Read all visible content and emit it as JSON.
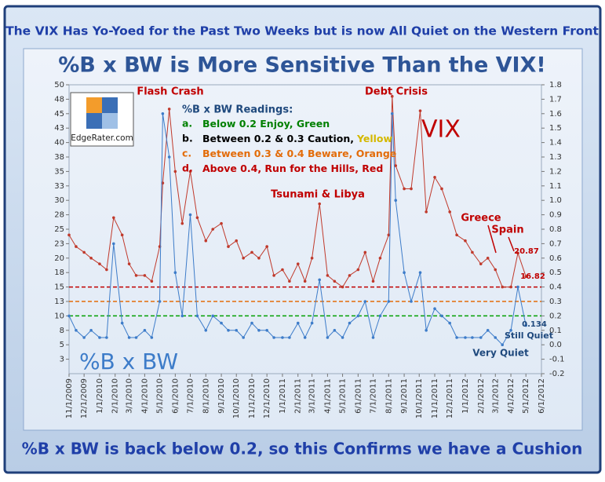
{
  "header": "The VIX Has Yo-Yoed for the Past Two Weeks but is now All Quiet on the Western Front",
  "footer": "%B x BW is back below 0.2, so this Confirms we have a Cushion",
  "logo": "EdgeRater.com",
  "chart_data": {
    "type": "line",
    "title": "%B x BW is More Sensitive Than the VIX!",
    "x": [
      "11/1/2009",
      "11/15/2009",
      "12/1/2009",
      "12/15/2009",
      "1/1/2010",
      "1/15/2010",
      "1/29/2010",
      "2/15/2010",
      "3/1/2010",
      "3/15/2010",
      "4/1/2010",
      "4/15/2010",
      "5/1/2010",
      "5/7/2010",
      "5/20/2010",
      "6/1/2010",
      "6/15/2010",
      "7/1/2010",
      "7/15/2010",
      "8/1/2010",
      "8/15/2010",
      "9/1/2010",
      "9/15/2010",
      "10/1/2010",
      "10/15/2010",
      "11/1/2010",
      "11/15/2010",
      "12/1/2010",
      "12/15/2010",
      "1/1/2011",
      "1/15/2011",
      "2/1/2011",
      "2/15/2011",
      "3/1/2011",
      "3/16/2011",
      "4/1/2011",
      "4/15/2011",
      "5/1/2011",
      "5/15/2011",
      "6/1/2011",
      "6/15/2011",
      "7/1/2011",
      "7/15/2011",
      "8/1/2011",
      "8/8/2011",
      "8/15/2011",
      "9/1/2011",
      "9/15/2011",
      "10/3/2011",
      "10/15/2011",
      "11/1/2011",
      "11/15/2011",
      "12/1/2011",
      "12/15/2011",
      "1/1/2012",
      "1/15/2012",
      "2/1/2012",
      "2/15/2012",
      "3/1/2012",
      "3/15/2012",
      "4/1/2012",
      "4/15/2012",
      "5/1/2012"
    ],
    "series": [
      {
        "name": "VIX",
        "color": "#c0392b",
        "axis": "y",
        "values": [
          24,
          22,
          21,
          20,
          19,
          18,
          27,
          24,
          19,
          17,
          17,
          16,
          22,
          33,
          45.8,
          35,
          26,
          35,
          27,
          23,
          25,
          26,
          22,
          23,
          20,
          21,
          20,
          22,
          17,
          18,
          16,
          19,
          16,
          20,
          29.4,
          17,
          16,
          15,
          17,
          18,
          21,
          16,
          20,
          24,
          48,
          36,
          32,
          32,
          45.5,
          28,
          34,
          32,
          28,
          24,
          23,
          21,
          19,
          20,
          18,
          15,
          15,
          20.87,
          16.82
        ]
      },
      {
        "name": "%B x BW",
        "color": "#3d7cc9",
        "axis": "y2",
        "values": [
          0.2,
          0.1,
          0.05,
          0.1,
          0.05,
          0.05,
          0.7,
          0.15,
          0.05,
          0.05,
          0.1,
          0.05,
          0.3,
          1.6,
          1.3,
          0.5,
          0.2,
          0.9,
          0.2,
          0.1,
          0.2,
          0.15,
          0.1,
          0.1,
          0.05,
          0.15,
          0.1,
          0.1,
          0.05,
          0.05,
          0.05,
          0.15,
          0.05,
          0.15,
          0.45,
          0.05,
          0.1,
          0.05,
          0.15,
          0.2,
          0.3,
          0.05,
          0.2,
          0.3,
          1.6,
          1.0,
          0.5,
          0.3,
          0.5,
          0.1,
          0.25,
          0.2,
          0.15,
          0.05,
          0.05,
          0.05,
          0.05,
          0.1,
          0.05,
          0.0,
          0.1,
          0.4,
          0.134
        ]
      }
    ],
    "xlim": [
      "11/1/2009",
      "6/1/2012"
    ],
    "xticks": [
      "11/1/2009",
      "12/1/2009",
      "1/1/2010",
      "2/1/2010",
      "3/1/2010",
      "4/1/2010",
      "5/1/2010",
      "6/1/2010",
      "7/1/2010",
      "8/1/2010",
      "9/1/2010",
      "10/1/2010",
      "11/1/2010",
      "12/1/2010",
      "1/1/2011",
      "2/1/2011",
      "3/1/2011",
      "4/1/2011",
      "5/1/2011",
      "6/1/2011",
      "7/1/2011",
      "8/1/2011",
      "9/1/2011",
      "10/1/2011",
      "11/1/2011",
      "12/1/2011",
      "1/1/2012",
      "2/1/2012",
      "3/1/2012",
      "4/1/2012",
      "5/1/2012",
      "6/1/2012"
    ],
    "ylim": [
      0,
      50
    ],
    "yticks": [
      {
        "value": 2.5,
        "label": "3"
      },
      5,
      {
        "value": 7.5,
        "label": "8"
      },
      10,
      {
        "value": 12.5,
        "label": "13"
      },
      15,
      {
        "value": 17.5,
        "label": "18"
      },
      20,
      {
        "value": 22.5,
        "label": "23"
      },
      25,
      {
        "value": 27.5,
        "label": "28"
      },
      30,
      {
        "value": 32.5,
        "label": "33"
      },
      35,
      {
        "value": 37.5,
        "label": "38"
      },
      40,
      {
        "value": 42.5,
        "label": "43"
      },
      45,
      {
        "value": 47.5,
        "label": "48"
      },
      50
    ],
    "y2lim": [
      -0.2,
      1.8
    ],
    "y2ticks": [
      -0.2,
      -0.1,
      {
        "value": 0,
        "label": "0.0"
      },
      0.1,
      0.2,
      0.3,
      0.4,
      0.5,
      0.6,
      0.7,
      0.8,
      0.9,
      {
        "value": 1,
        "label": "1.0"
      },
      1.1,
      1.2,
      1.3,
      1.4,
      1.5,
      1.6,
      1.7,
      1.8
    ],
    "reference_lines": [
      {
        "value": 0.4,
        "color": "#c00000"
      },
      {
        "value": 0.3,
        "color": "#e36c09"
      },
      {
        "value": 0.2,
        "color": "#00a000"
      }
    ],
    "legend_box": {
      "heading": "%B x BW Readings:",
      "items": [
        {
          "marker": "a.",
          "text": "Below 0.2 Enjoy, Green",
          "color": "#008000"
        },
        {
          "marker": "b.",
          "text": "Between 0.2 & 0.3 Caution,",
          "color": "#000000",
          "suffix": "Yellow",
          "suffix_color": "#d4b800"
        },
        {
          "marker": "c.",
          "text": "Between 0.3 & 0.4 Beware, Orange",
          "color": "#e36c09"
        },
        {
          "marker": "d.",
          "text": "Above 0.4, Run for the Hills, Red",
          "color": "#c00000"
        }
      ]
    },
    "annotations": [
      {
        "text": "Flash Crash",
        "color": "#c00000"
      },
      {
        "text": "Debt Crisis",
        "color": "#c00000"
      },
      {
        "text": "Tsunami & Libya",
        "color": "#c00000"
      },
      {
        "text": "VIX",
        "color": "#c00000"
      },
      {
        "text": "Greece",
        "color": "#c00000"
      },
      {
        "text": "Spain",
        "color": "#c00000"
      },
      {
        "text": "20.87",
        "color": "#c00000"
      },
      {
        "text": "16.82",
        "color": "#c00000"
      },
      {
        "text": "0.134",
        "color": "#1f497d"
      },
      {
        "text": "Still Quiet",
        "color": "#1f497d"
      },
      {
        "text": "Very Quiet",
        "color": "#1f497d"
      },
      {
        "text": "%B x BW",
        "color": "#3d7cc9"
      }
    ]
  }
}
